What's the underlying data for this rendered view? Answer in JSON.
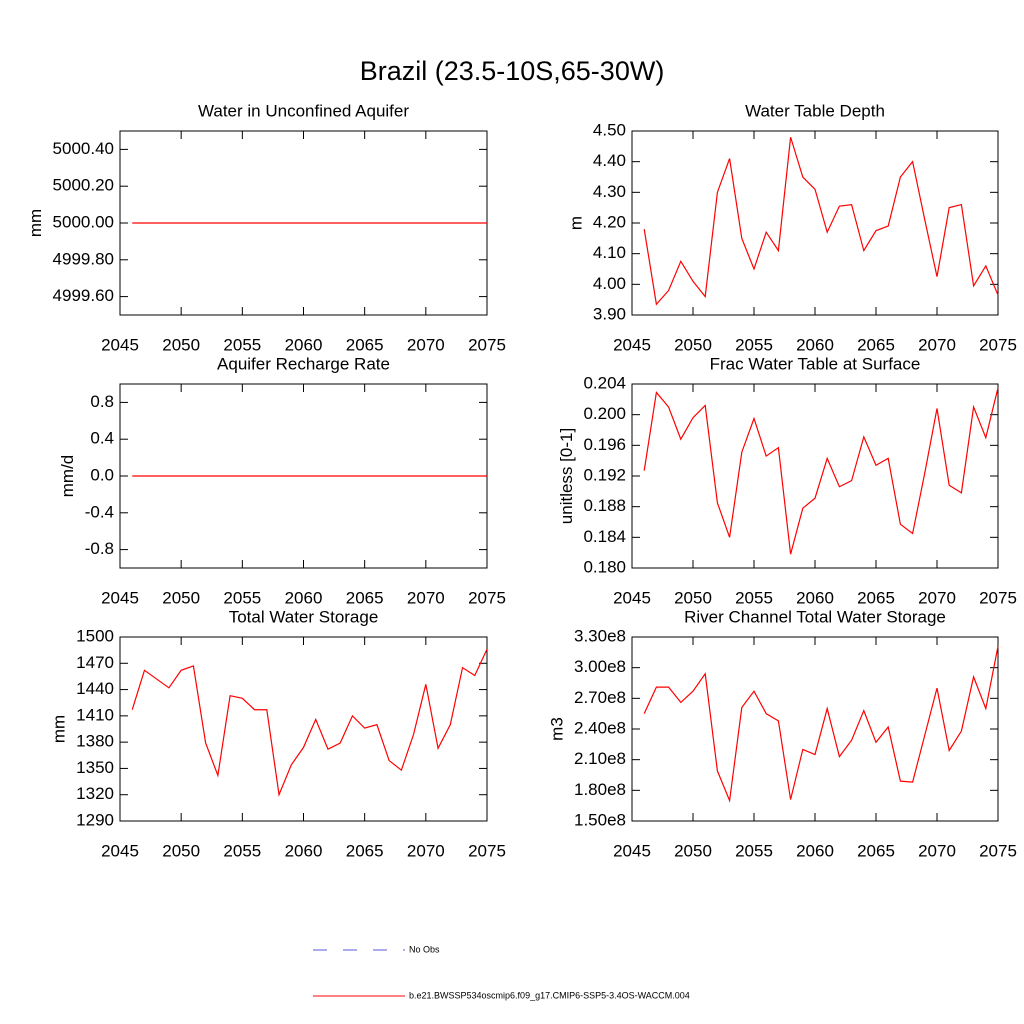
{
  "title": "Brazil (23.5-10S,65-30W)",
  "legend": [
    {
      "name": "No Obs",
      "color": "#5a5ad8",
      "dash": true
    },
    {
      "name": "b.e21.BWSSP534oscmip6.f09_g17.CMIP6-SSP5-3.4OS-WACCM.004",
      "color": "#ff0000",
      "dash": false
    }
  ],
  "chart_data": [
    {
      "type": "line",
      "title": "Water in Unconfined Aquifer",
      "ylabel": "mm",
      "x": [
        2046,
        2047,
        2048,
        2049,
        2050,
        2051,
        2052,
        2053,
        2054,
        2055,
        2056,
        2057,
        2058,
        2059,
        2060,
        2061,
        2062,
        2063,
        2064,
        2065,
        2066,
        2067,
        2068,
        2069,
        2070,
        2071,
        2072,
        2073,
        2074,
        2075
      ],
      "series": [
        {
          "color": "#ff0000",
          "values": [
            5000,
            5000,
            5000,
            5000,
            5000,
            5000,
            5000,
            5000,
            5000,
            5000,
            5000,
            5000,
            5000,
            5000,
            5000,
            5000,
            5000,
            5000,
            5000,
            5000,
            5000,
            5000,
            5000,
            5000,
            5000,
            5000,
            5000,
            5000,
            5000,
            5000
          ]
        }
      ],
      "xlim": [
        2045,
        2075
      ],
      "xticks": [
        2045,
        2050,
        2055,
        2060,
        2065,
        2070,
        2075
      ],
      "ylim": [
        4999.5,
        5000.5
      ],
      "yticks": [
        {
          "value": 4999.6,
          "label": "4999.60"
        },
        {
          "value": 4999.8,
          "label": "4999.80"
        },
        {
          "value": 5000,
          "label": "5000.00"
        },
        {
          "value": 5000.2,
          "label": "5000.20"
        },
        {
          "value": 5000.4,
          "label": "5000.40"
        }
      ]
    },
    {
      "type": "line",
      "title": "Water Table Depth",
      "ylabel": "m",
      "x": [
        2046,
        2047,
        2048,
        2049,
        2050,
        2051,
        2052,
        2053,
        2054,
        2055,
        2056,
        2057,
        2058,
        2059,
        2060,
        2061,
        2062,
        2063,
        2064,
        2065,
        2066,
        2067,
        2068,
        2069,
        2070,
        2071,
        2072,
        2073,
        2074,
        2075
      ],
      "series": [
        {
          "color": "#ff0000",
          "values": [
            4.18,
            3.935,
            3.98,
            4.075,
            4.01,
            3.96,
            4.3,
            4.41,
            4.15,
            4.05,
            4.17,
            4.11,
            4.48,
            4.35,
            4.31,
            4.17,
            4.255,
            4.26,
            4.11,
            4.175,
            4.19,
            4.35,
            4.4,
            4.21,
            4.025,
            4.25,
            4.26,
            3.995,
            4.06,
            3.965
          ]
        }
      ],
      "xlim": [
        2045,
        2075
      ],
      "xticks": [
        2045,
        2050,
        2055,
        2060,
        2065,
        2070,
        2075
      ],
      "ylim": [
        3.9,
        4.5
      ],
      "yticks": [
        {
          "value": 3.9,
          "label": "3.90"
        },
        {
          "value": 4.0,
          "label": "4.00"
        },
        {
          "value": 4.1,
          "label": "4.10"
        },
        {
          "value": 4.2,
          "label": "4.20"
        },
        {
          "value": 4.3,
          "label": "4.30"
        },
        {
          "value": 4.4,
          "label": "4.40"
        },
        {
          "value": 4.5,
          "label": "4.50"
        }
      ]
    },
    {
      "type": "line",
      "title": "Aquifer Recharge Rate",
      "ylabel": "mm/d",
      "x": [
        2046,
        2047,
        2048,
        2049,
        2050,
        2051,
        2052,
        2053,
        2054,
        2055,
        2056,
        2057,
        2058,
        2059,
        2060,
        2061,
        2062,
        2063,
        2064,
        2065,
        2066,
        2067,
        2068,
        2069,
        2070,
        2071,
        2072,
        2073,
        2074,
        2075
      ],
      "series": [
        {
          "color": "#ff0000",
          "values": [
            0,
            0,
            0,
            0,
            0,
            0,
            0,
            0,
            0,
            0,
            0,
            0,
            0,
            0,
            0,
            0,
            0,
            0,
            0,
            0,
            0,
            0,
            0,
            0,
            0,
            0,
            0,
            0,
            0,
            0
          ]
        }
      ],
      "xlim": [
        2045,
        2075
      ],
      "xticks": [
        2045,
        2050,
        2055,
        2060,
        2065,
        2070,
        2075
      ],
      "ylim": [
        -1,
        1
      ],
      "yticks": [
        -0.8,
        -0.4,
        {
          "value": 0,
          "label": "0.0"
        },
        0.4,
        0.8
      ]
    },
    {
      "type": "line",
      "title": "Frac Water Table at Surface",
      "ylabel": "unitless [0-1]",
      "x": [
        2046,
        2047,
        2048,
        2049,
        2050,
        2051,
        2052,
        2053,
        2054,
        2055,
        2056,
        2057,
        2058,
        2059,
        2060,
        2061,
        2062,
        2063,
        2064,
        2065,
        2066,
        2067,
        2068,
        2069,
        2070,
        2071,
        2072,
        2073,
        2074,
        2075
      ],
      "series": [
        {
          "color": "#ff0000",
          "values": [
            0.1927,
            0.2029,
            0.201,
            0.1968,
            0.1996,
            0.2012,
            0.1885,
            0.184,
            0.1951,
            0.1995,
            0.1946,
            0.1957,
            0.1818,
            0.1878,
            0.1891,
            0.1943,
            0.1906,
            0.1914,
            0.1971,
            0.1934,
            0.1943,
            0.1857,
            0.1845,
            0.1924,
            0.2008,
            0.1908,
            0.1898,
            0.201,
            0.197,
            0.2035
          ]
        }
      ],
      "xlim": [
        2045,
        2075
      ],
      "xticks": [
        2045,
        2050,
        2055,
        2060,
        2065,
        2070,
        2075
      ],
      "ylim": [
        0.18,
        0.204
      ],
      "yticks": [
        {
          "value": 0.18,
          "label": "0.180"
        },
        0.184,
        0.188,
        0.192,
        0.196,
        {
          "value": 0.2,
          "label": "0.200"
        },
        0.204
      ]
    },
    {
      "type": "line",
      "title": "Total Water Storage",
      "ylabel": "mm",
      "x": [
        2046,
        2047,
        2048,
        2049,
        2050,
        2051,
        2052,
        2053,
        2054,
        2055,
        2056,
        2057,
        2058,
        2059,
        2060,
        2061,
        2062,
        2063,
        2064,
        2065,
        2066,
        2067,
        2068,
        2069,
        2070,
        2071,
        2072,
        2073,
        2074,
        2075
      ],
      "series": [
        {
          "color": "#ff0000",
          "values": [
            1417,
            1462,
            1452,
            1442,
            1462,
            1467,
            1379,
            1342,
            1433,
            1430,
            1417,
            1417,
            1320,
            1354,
            1374,
            1406,
            1372,
            1379,
            1410,
            1396,
            1400,
            1359,
            1348,
            1389,
            1446,
            1373,
            1400,
            1465,
            1456,
            1486
          ]
        }
      ],
      "xlim": [
        2045,
        2075
      ],
      "xticks": [
        2045,
        2050,
        2055,
        2060,
        2065,
        2070,
        2075
      ],
      "ylim": [
        1290,
        1500
      ],
      "yticks": [
        1290,
        1320,
        1350,
        1380,
        1410,
        1440,
        1470,
        1500
      ]
    },
    {
      "type": "line",
      "title": "River Channel Total Water Storage",
      "ylabel": "m3",
      "x": [
        2046,
        2047,
        2048,
        2049,
        2050,
        2051,
        2052,
        2053,
        2054,
        2055,
        2056,
        2057,
        2058,
        2059,
        2060,
        2061,
        2062,
        2063,
        2064,
        2065,
        2066,
        2067,
        2068,
        2069,
        2070,
        2071,
        2072,
        2073,
        2074,
        2075
      ],
      "series": [
        {
          "color": "#ff0000",
          "values": [
            255000000,
            281000000,
            281000000,
            266000000,
            277000000,
            294000000,
            199000000,
            170000000,
            261000000,
            277000000,
            255000000,
            248000000,
            171000000,
            220000000,
            215000000,
            260000000,
            213000000,
            229000000,
            258000000,
            227000000,
            242000000,
            189000000,
            188000000,
            234000000,
            280000000,
            219000000,
            238000000,
            291000000,
            260000000,
            321000000
          ]
        }
      ],
      "xlim": [
        2045,
        2075
      ],
      "xticks": [
        2045,
        2050,
        2055,
        2060,
        2065,
        2070,
        2075
      ],
      "ylim": [
        150000000,
        330000000
      ],
      "yticks": [
        {
          "value": 150000000,
          "label": "1.50e8"
        },
        {
          "value": 180000000,
          "label": "1.80e8"
        },
        {
          "value": 210000000,
          "label": "2.10e8"
        },
        {
          "value": 240000000,
          "label": "2.40e8"
        },
        {
          "value": 270000000,
          "label": "2.70e8"
        },
        {
          "value": 300000000,
          "label": "3.00e8"
        },
        {
          "value": 330000000,
          "label": "3.30e8"
        }
      ]
    }
  ]
}
